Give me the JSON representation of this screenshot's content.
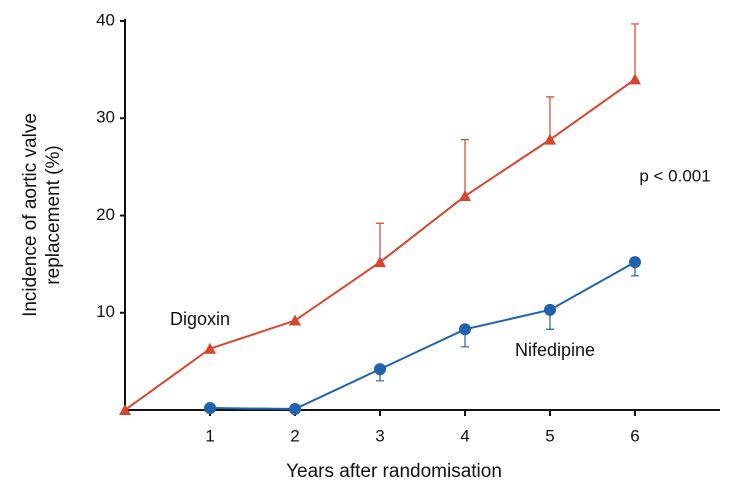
{
  "chart_data": {
    "type": "line",
    "xlabel": "Years after randomisation",
    "ylabel": [
      "Incidence of aortic valve",
      "replacement (%)"
    ],
    "xlim": [
      0,
      7
    ],
    "xticks": [
      1,
      2,
      3,
      4,
      5,
      6
    ],
    "ylim": [
      0,
      40
    ],
    "yticks": [
      10,
      20,
      30,
      40
    ],
    "series": [
      {
        "name": "Digoxin",
        "color": "#d9442a",
        "marker": "triangle",
        "error_direction": "up",
        "x": [
          0,
          1,
          2,
          3,
          4,
          5,
          6
        ],
        "values": [
          0,
          6.3,
          9.2,
          15.2,
          22,
          27.8,
          34
        ],
        "errors": [
          null,
          null,
          null,
          4,
          5.8,
          4.4,
          5.7
        ]
      },
      {
        "name": "Nifedipine",
        "color": "#1f63b0",
        "marker": "circle",
        "error_direction": "down",
        "x": [
          1,
          2,
          3,
          4,
          5,
          6
        ],
        "values": [
          0.2,
          0.1,
          4.2,
          8.3,
          10.3,
          15.2
        ],
        "errors": [
          null,
          null,
          1.2,
          1.8,
          2,
          1.4
        ]
      }
    ],
    "annotation": "p < 0.001"
  }
}
